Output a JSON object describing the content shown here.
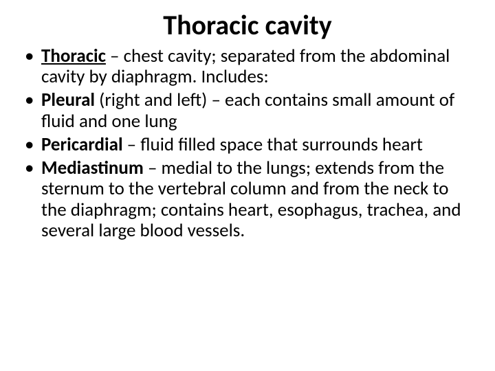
{
  "slide": {
    "title": "Thoracic cavity",
    "bullets": [
      {
        "term": "Thoracic",
        "term_underlined": true,
        "text": " – chest cavity; separated from the abdominal cavity by diaphragm. Includes:"
      },
      {
        "term": "Pleural",
        "term_underlined": false,
        "text": " (right and left) – each contains small amount of fluid and one lung"
      },
      {
        "term": "Pericardial",
        "term_underlined": false,
        "text": " – fluid filled space that surrounds heart"
      },
      {
        "term": "Mediastinum",
        "term_underlined": false,
        "text": " – medial to the lungs; extends from the sternum to the vertebral column and from the neck to the diaphragm; contains heart, esophagus, trachea, and several large blood vessels."
      }
    ],
    "colors": {
      "background": "#ffffff",
      "text": "#000000"
    },
    "typography": {
      "title_fontsize": 40,
      "body_fontsize": 27,
      "font_family": "Calibri"
    }
  }
}
